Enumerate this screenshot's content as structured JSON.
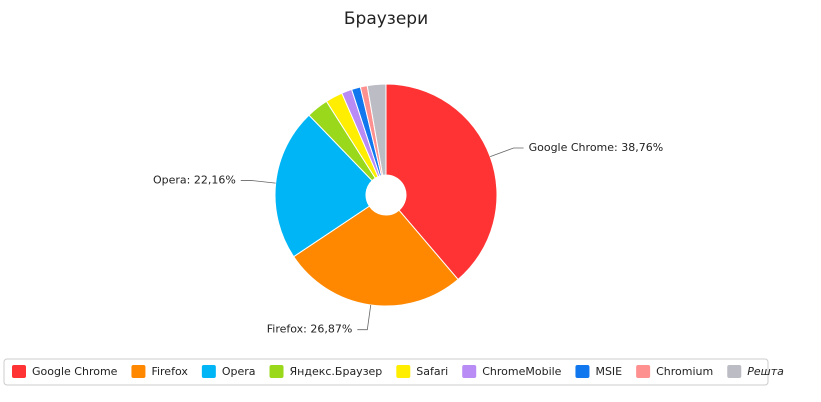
{
  "chart_data": {
    "type": "pie",
    "title": "Браузери",
    "categories": [
      "Google Chrome",
      "Firefox",
      "Opera",
      "Яндекс.Браузер",
      "Safari",
      "ChromeMobile",
      "MSIE",
      "Chromium",
      "Решта"
    ],
    "values": [
      38.76,
      26.87,
      22.16,
      3.2,
      2.5,
      1.5,
      1.3,
      1.0,
      2.71
    ],
    "value_labels": [
      "Google Chrome: 38,76%",
      "Firefox: 26,87%",
      "Opera: 22,16%",
      null,
      null,
      null,
      null,
      null,
      null
    ],
    "colors": [
      "#ff3333",
      "#ff8800",
      "#00b5f5",
      "#99d81a",
      "#ffee00",
      "#b98cf5",
      "#1177ee",
      "#ff9090",
      "#bcbcc4"
    ],
    "legend": "bottom"
  }
}
